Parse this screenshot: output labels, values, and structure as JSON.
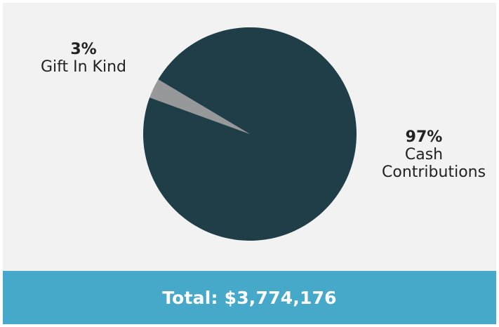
{
  "chart_data": {
    "type": "pie",
    "slices": [
      {
        "label": "Cash Contributions",
        "percent_label": "97%",
        "value": 97,
        "color": "#1f3e48"
      },
      {
        "label": "Gift In Kind",
        "percent_label": "3%",
        "value": 3,
        "color": "#979899"
      }
    ],
    "total_label": "Total: $3,774,176"
  }
}
